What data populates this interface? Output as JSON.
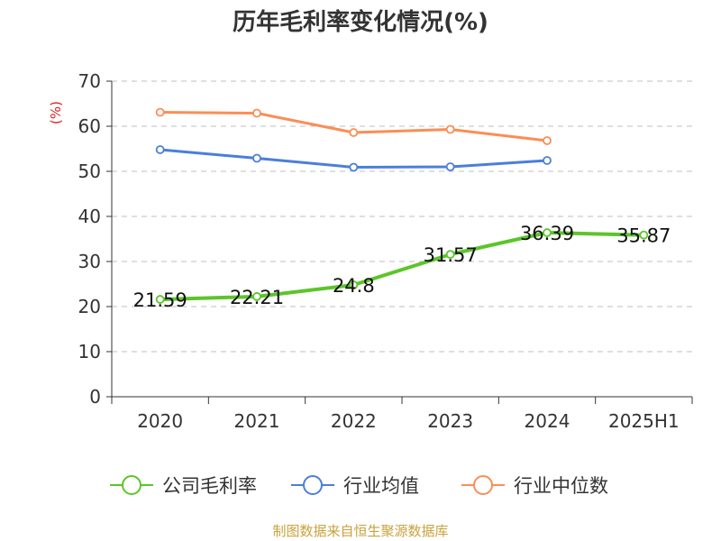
{
  "chart_data": {
    "type": "line",
    "title": "历年毛利率变化情况(%)",
    "ylabel": "(%)",
    "xlabel": "",
    "categories": [
      "2020",
      "2021",
      "2022",
      "2023",
      "2024",
      "2025H1"
    ],
    "ylim": [
      0,
      70
    ],
    "yticks": [
      0,
      10,
      20,
      30,
      40,
      50,
      60,
      70
    ],
    "grid": true,
    "legend_position": "bottom",
    "series": [
      {
        "name": "公司毛利率",
        "color": "#5cc52a",
        "values": [
          21.59,
          22.21,
          24.8,
          31.57,
          36.39,
          35.87
        ],
        "labels": [
          "21.59",
          "22.21",
          "24.8",
          "31.57",
          "36.39",
          "35.87"
        ]
      },
      {
        "name": "行业均值",
        "color": "#4a7fda",
        "values": [
          54.8,
          52.9,
          50.9,
          51.0,
          52.4,
          null
        ]
      },
      {
        "name": "行业中位数",
        "color": "#fb8d55",
        "values": [
          63.1,
          62.9,
          58.6,
          59.3,
          56.8,
          null
        ]
      }
    ]
  },
  "source_text": "制图数据来自恒生聚源数据库"
}
